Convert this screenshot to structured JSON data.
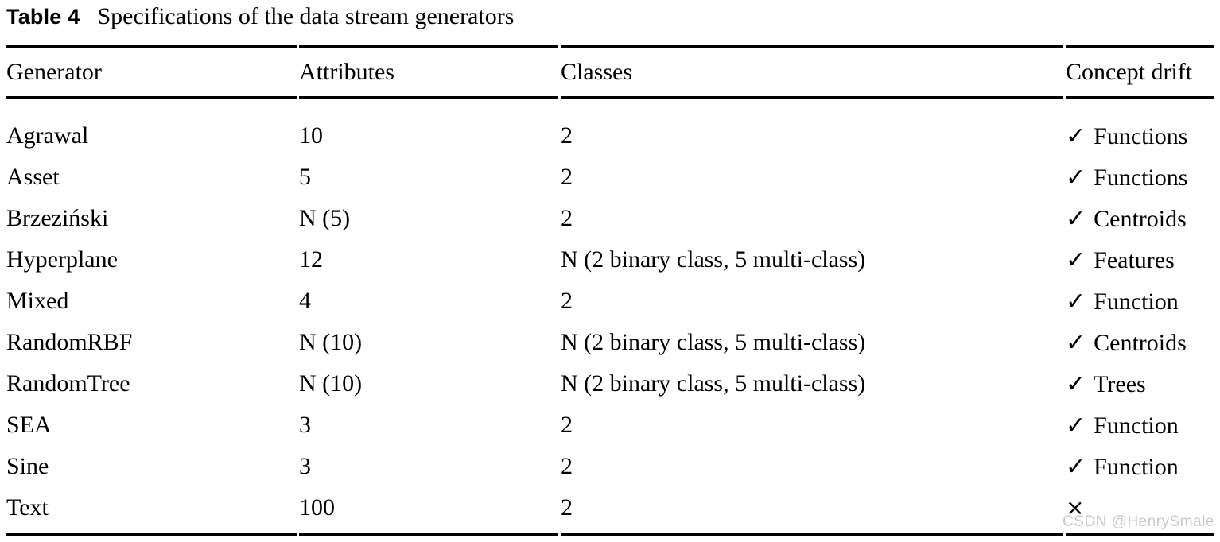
{
  "caption": {
    "label": "Table 4",
    "text": "Specifications of the data stream generators"
  },
  "table": {
    "columns": [
      "Generator",
      "Attributes",
      "Classes",
      "Concept drift"
    ],
    "rows": [
      {
        "generator": "Agrawal",
        "attributes": "10",
        "classes": "2",
        "drift_mark": "✓",
        "drift_label": "Functions"
      },
      {
        "generator": "Asset",
        "attributes": "5",
        "classes": "2",
        "drift_mark": "✓",
        "drift_label": "Functions"
      },
      {
        "generator": "Brzeziński",
        "attributes": "N (5)",
        "classes": "2",
        "drift_mark": "✓",
        "drift_label": "Centroids"
      },
      {
        "generator": "Hyperplane",
        "attributes": "12",
        "classes": "N (2 binary class, 5 multi-class)",
        "drift_mark": "✓",
        "drift_label": "Features"
      },
      {
        "generator": "Mixed",
        "attributes": "4",
        "classes": "2",
        "drift_mark": "✓",
        "drift_label": "Function"
      },
      {
        "generator": "RandomRBF",
        "attributes": "N (10)",
        "classes": "N (2 binary class, 5 multi-class)",
        "drift_mark": "✓",
        "drift_label": "Centroids"
      },
      {
        "generator": "RandomTree",
        "attributes": "N (10)",
        "classes": "N (2 binary class, 5 multi-class)",
        "drift_mark": "✓",
        "drift_label": "Trees"
      },
      {
        "generator": "SEA",
        "attributes": "3",
        "classes": "2",
        "drift_mark": "✓",
        "drift_label": "Function"
      },
      {
        "generator": "Sine",
        "attributes": "3",
        "classes": "2",
        "drift_mark": "✓",
        "drift_label": "Function"
      },
      {
        "generator": "Text",
        "attributes": "100",
        "classes": "2",
        "drift_mark": "×",
        "drift_label": ""
      }
    ]
  },
  "icons": {
    "check": "✓",
    "cross": "×"
  },
  "colors": {
    "text": "#000000",
    "rules": "#000000",
    "watermark": "#c8c8c8",
    "background": "#ffffff"
  },
  "watermark": {
    "text": "CSDN @HenrySmale"
  }
}
